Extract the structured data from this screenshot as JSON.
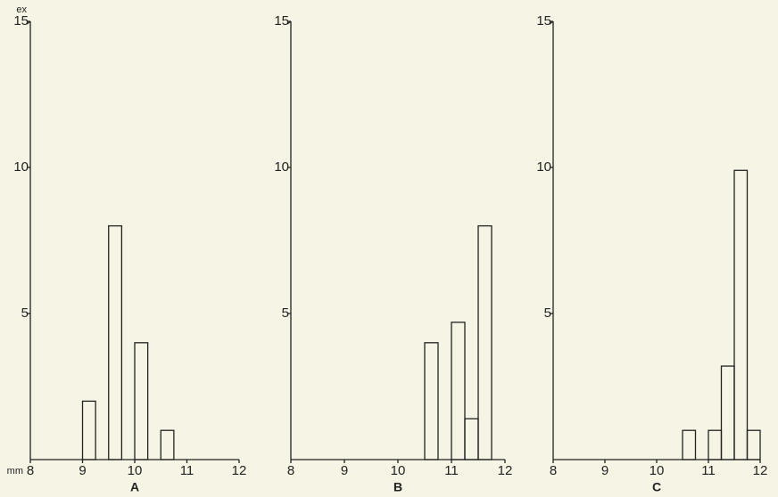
{
  "chart_data": [
    {
      "type": "histogram",
      "title": "A",
      "y_label": "ex",
      "x_label": "mm",
      "bins": [
        9.0,
        9.25,
        9.5,
        9.75,
        10.0,
        10.25,
        10.5,
        10.75
      ],
      "values": [
        2,
        0,
        8,
        0,
        4,
        0,
        1
      ],
      "xlim": [
        8,
        12
      ],
      "xticks": [
        8,
        9,
        10,
        11,
        12
      ],
      "ylim": [
        0,
        15
      ],
      "yticks": [
        5,
        10,
        15
      ],
      "color": "#222222"
    },
    {
      "type": "histogram",
      "title": "B",
      "bins": [
        10.5,
        10.75,
        11.0,
        11.25,
        11.5,
        11.75
      ],
      "values": [
        4,
        0,
        4.7,
        1.4,
        8
      ],
      "xlim": [
        8,
        12
      ],
      "xticks": [
        8,
        9,
        10,
        11,
        12
      ],
      "ylim": [
        0,
        15
      ],
      "yticks": [
        5,
        10,
        15
      ],
      "color": "#222222"
    },
    {
      "type": "histogram",
      "title": "C",
      "bins": [
        10.5,
        10.75,
        11.0,
        11.25,
        11.5,
        11.75,
        12.0
      ],
      "values": [
        1,
        0,
        1,
        3.2,
        9.9,
        1
      ],
      "xlim": [
        8,
        12
      ],
      "xticks": [
        8,
        9,
        10,
        11,
        12
      ],
      "ylim": [
        0,
        15
      ],
      "yticks": [
        5,
        10,
        15
      ],
      "color": "#222222"
    }
  ]
}
